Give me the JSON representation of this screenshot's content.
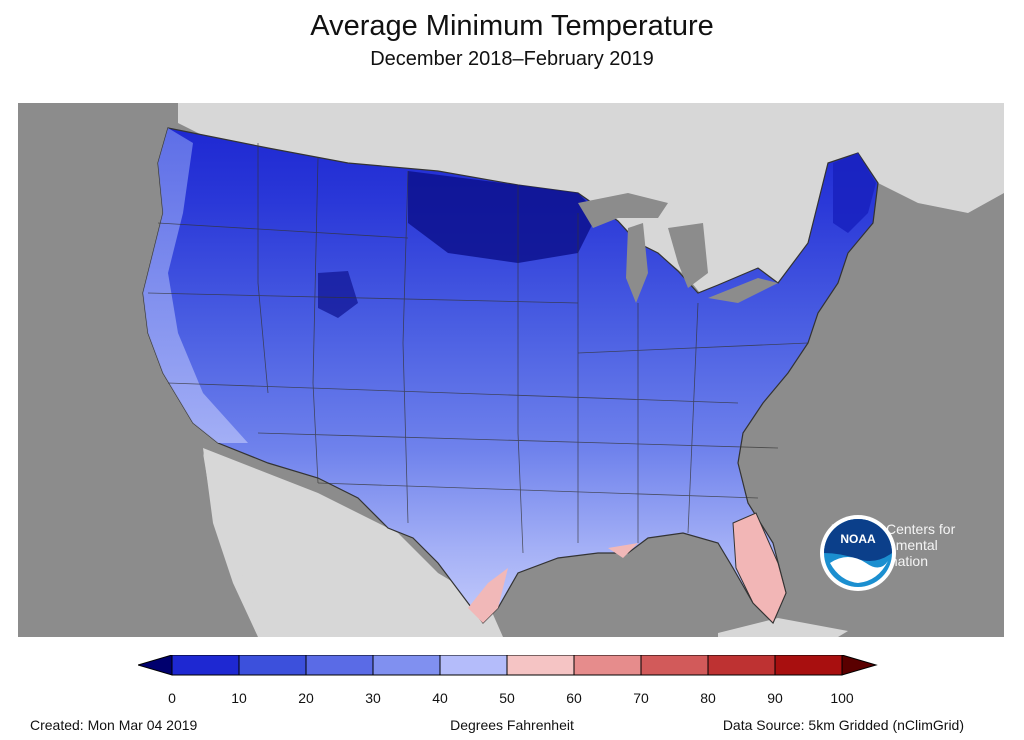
{
  "title": "Average Minimum Temperature",
  "subtitle": "December 2018–February 2019",
  "logo": {
    "wordmark": "NOAA",
    "organization_lines": [
      "National Centers for",
      "Environmental",
      "Information"
    ]
  },
  "legend": {
    "units_label": "Degrees Fahrenheit",
    "ticks": [
      "0",
      "10",
      "20",
      "30",
      "40",
      "50",
      "60",
      "70",
      "80",
      "90",
      "100"
    ],
    "colors": [
      "#00006e",
      "#1e28d2",
      "#3c50dc",
      "#5a6be6",
      "#8090f0",
      "#b4bcfa",
      "#f5c4c4",
      "#e68c8c",
      "#d25a5a",
      "#be3232",
      "#a80f0f",
      "#5a0000"
    ]
  },
  "footer": {
    "created": "Created: Mon Mar 04 2019",
    "source": "Data Source: 5km Gridded (nClimGrid)"
  },
  "map_colors": {
    "ocean": "#8c8c8c",
    "land_outside": "#d7d7d7",
    "state_borders": "#333333"
  }
}
